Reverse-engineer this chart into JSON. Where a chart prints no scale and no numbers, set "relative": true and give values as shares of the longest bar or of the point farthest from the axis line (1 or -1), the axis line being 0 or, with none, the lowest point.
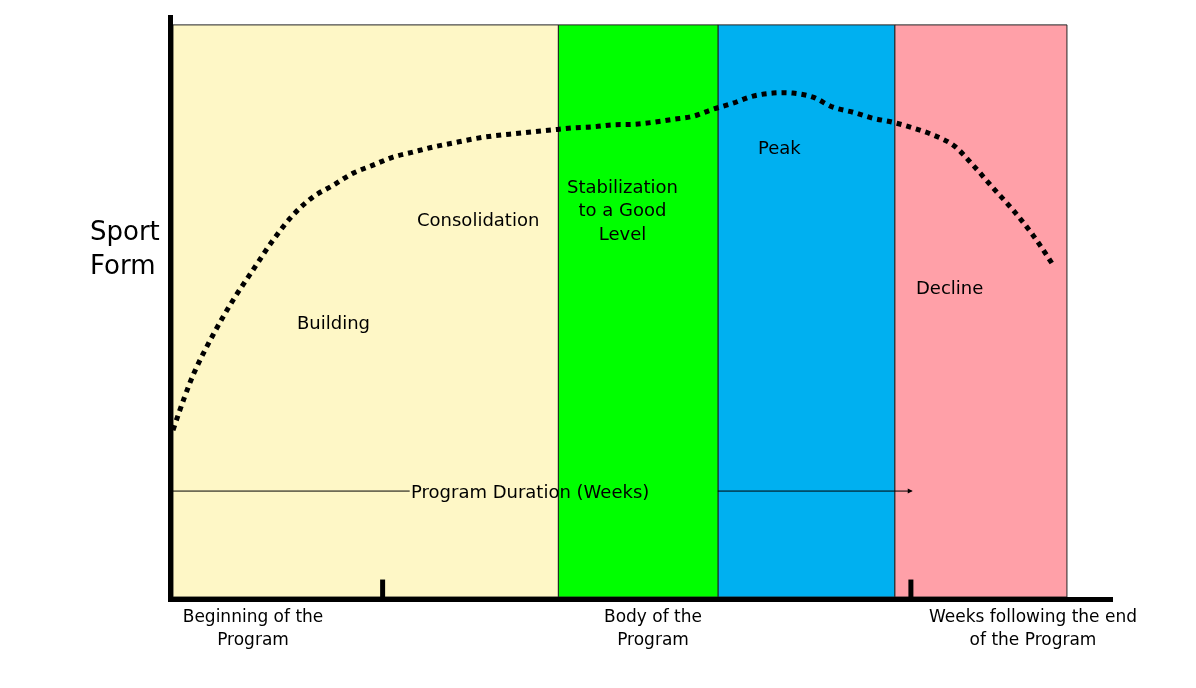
{
  "chart_data": {
    "type": "line",
    "relative": true,
    "ylabel": "Sport\nForm",
    "categories": [
      null,
      null,
      null,
      null,
      "Beginning of the\nProgram",
      null,
      null,
      null,
      null,
      null,
      null,
      null,
      null,
      null,
      null,
      null,
      null,
      null,
      null,
      null,
      null,
      null,
      null,
      null,
      "Body of the\nProgram",
      null,
      null,
      null,
      null,
      null,
      null,
      null,
      null,
      null,
      null,
      null,
      null,
      null,
      null,
      null,
      null,
      null,
      null,
      "Weeks following the end\nof the Program",
      null,
      null,
      null,
      null
    ],
    "series": [
      {
        "color": "#000000",
        "values": [
          0.331,
          0.44,
          0.52,
          0.589,
          0.649,
          0.708,
          0.758,
          0.794,
          0.817,
          0.841,
          0.857,
          0.873,
          0.883,
          0.893,
          0.901,
          0.909,
          0.915,
          0.919,
          0.923,
          0.927,
          0.931,
          0.933,
          0.937,
          0.938,
          0.942,
          0.948,
          0.954,
          0.968,
          0.98,
          0.994,
          1.0,
          1.0,
          0.992,
          0.972,
          0.962,
          0.95,
          0.942,
          0.931,
          0.917,
          0.897,
          0.857,
          0.812,
          0.768,
          0.718,
          0.659,
          null,
          null,
          null
        ]
      }
    ],
    "annotations": [
      "Building",
      "Consolidation",
      "Stabilization\nto a Good\nLevel",
      "Peak",
      "Decline",
      "Program Duration (Weeks)"
    ],
    "marker": "none",
    "line_style": "dotted"
  }
}
